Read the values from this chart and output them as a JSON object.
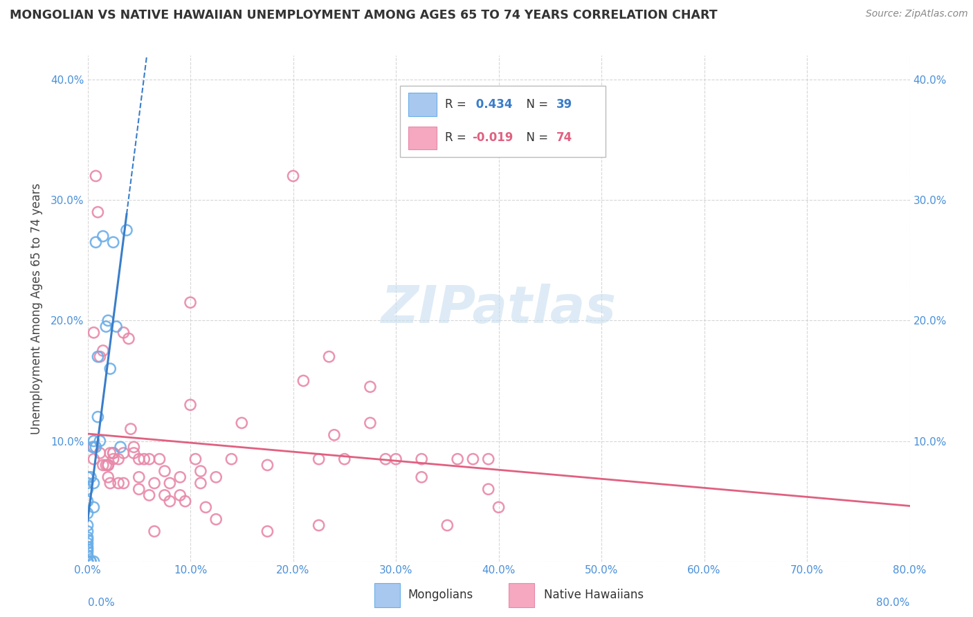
{
  "title": "MONGOLIAN VS NATIVE HAWAIIAN UNEMPLOYMENT AMONG AGES 65 TO 74 YEARS CORRELATION CHART",
  "source": "Source: ZipAtlas.com",
  "ylabel": "Unemployment Among Ages 65 to 74 years",
  "xlim": [
    0.0,
    0.8
  ],
  "ylim": [
    0.0,
    0.42
  ],
  "mongolian_R": 0.434,
  "mongolian_N": 39,
  "native_hawaiian_R": -0.019,
  "native_hawaiian_N": 74,
  "mongolian_color": "#a8c8f0",
  "mongolian_edge_color": "#6aaee8",
  "mongolian_line_color": "#3a7dc9",
  "native_hawaiian_color": "#f5a8c0",
  "native_hawaiian_edge_color": "#e888a8",
  "native_hawaiian_line_color": "#e06080",
  "tick_color": "#4a90d9",
  "grid_color": "#cccccc",
  "title_color": "#333333",
  "source_color": "#888888",
  "watermark_color": "#c8dff0",
  "mongolian_x": [
    0.0,
    0.0,
    0.0,
    0.0,
    0.0,
    0.0,
    0.0,
    0.0,
    0.0,
    0.0,
    0.0,
    0.0,
    0.0,
    0.0,
    0.0,
    0.0,
    0.0,
    0.0,
    0.003,
    0.003,
    0.003,
    0.005,
    0.006,
    0.006,
    0.006,
    0.006,
    0.008,
    0.008,
    0.01,
    0.01,
    0.012,
    0.015,
    0.018,
    0.02,
    0.022,
    0.025,
    0.028,
    0.032,
    0.038
  ],
  "mongolian_y": [
    0.0,
    0.0,
    0.0,
    0.0,
    0.005,
    0.008,
    0.01,
    0.012,
    0.015,
    0.018,
    0.02,
    0.025,
    0.03,
    0.04,
    0.05,
    0.06,
    0.065,
    0.07,
    0.0,
    0.0,
    0.07,
    0.095,
    0.0,
    0.045,
    0.065,
    0.1,
    0.095,
    0.265,
    0.12,
    0.17,
    0.1,
    0.27,
    0.195,
    0.2,
    0.16,
    0.265,
    0.195,
    0.095,
    0.275
  ],
  "native_hawaiian_x": [
    0.006,
    0.006,
    0.006,
    0.008,
    0.01,
    0.012,
    0.012,
    0.015,
    0.015,
    0.018,
    0.02,
    0.02,
    0.02,
    0.022,
    0.022,
    0.025,
    0.025,
    0.025,
    0.03,
    0.03,
    0.035,
    0.035,
    0.035,
    0.04,
    0.042,
    0.045,
    0.045,
    0.05,
    0.05,
    0.05,
    0.055,
    0.06,
    0.06,
    0.065,
    0.065,
    0.07,
    0.075,
    0.075,
    0.08,
    0.08,
    0.09,
    0.09,
    0.095,
    0.1,
    0.1,
    0.105,
    0.11,
    0.11,
    0.115,
    0.125,
    0.125,
    0.14,
    0.15,
    0.175,
    0.175,
    0.2,
    0.21,
    0.225,
    0.225,
    0.235,
    0.24,
    0.25,
    0.275,
    0.275,
    0.29,
    0.3,
    0.325,
    0.325,
    0.35,
    0.36,
    0.375,
    0.39,
    0.39,
    0.4
  ],
  "native_hawaiian_y": [
    0.085,
    0.095,
    0.19,
    0.32,
    0.29,
    0.17,
    0.09,
    0.08,
    0.175,
    0.08,
    0.08,
    0.08,
    0.07,
    0.09,
    0.065,
    0.09,
    0.085,
    0.09,
    0.085,
    0.065,
    0.09,
    0.065,
    0.19,
    0.185,
    0.11,
    0.095,
    0.09,
    0.085,
    0.07,
    0.06,
    0.085,
    0.085,
    0.055,
    0.025,
    0.065,
    0.085,
    0.075,
    0.055,
    0.065,
    0.05,
    0.055,
    0.07,
    0.05,
    0.215,
    0.13,
    0.085,
    0.075,
    0.065,
    0.045,
    0.035,
    0.07,
    0.085,
    0.115,
    0.08,
    0.025,
    0.32,
    0.15,
    0.085,
    0.03,
    0.17,
    0.105,
    0.085,
    0.145,
    0.115,
    0.085,
    0.085,
    0.085,
    0.07,
    0.03,
    0.085,
    0.085,
    0.06,
    0.085,
    0.045
  ]
}
